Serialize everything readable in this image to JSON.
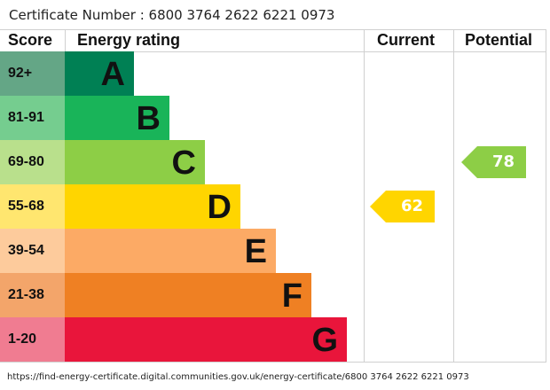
{
  "certificate": "Certificate Number : 6800 3764 2622 6221 0973",
  "headers": {
    "score": "Score",
    "rating": "Energy rating",
    "current": "Current",
    "potential": "Potential"
  },
  "chart_data": {
    "type": "bar",
    "categories": [
      "A",
      "B",
      "C",
      "D",
      "E",
      "F",
      "G"
    ],
    "score_ranges": [
      "92+",
      "81-91",
      "69-80",
      "55-68",
      "39-54",
      "21-38",
      "1-20"
    ],
    "colors": [
      "#008054",
      "#19b459",
      "#8dce46",
      "#ffd500",
      "#fcaa65",
      "#ef8023",
      "#e9153b"
    ],
    "score_colors": [
      "#64a686",
      "#75cd8f",
      "#b9e08c",
      "#ffe66f",
      "#fdcb9c",
      "#f3a56a",
      "#f07c91"
    ],
    "current": {
      "value": 62,
      "band": "D",
      "color": "#ffd500"
    },
    "potential": {
      "value": 78,
      "band": "C",
      "color": "#8dce46"
    }
  },
  "url": "https://find-energy-certificate.digital.communities.gov.uk/energy-certificate/6800 3764 2622 6221 0973"
}
